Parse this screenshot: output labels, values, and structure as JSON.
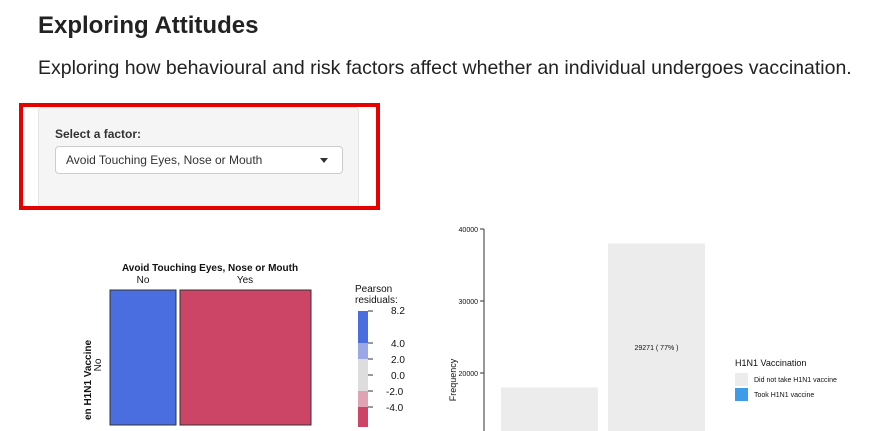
{
  "page": {
    "title": "Exploring Attitudes",
    "subtitle": "Exploring how behavioural and risk factors affect whether an individual undergoes vaccination."
  },
  "factor_select": {
    "label": "Select a factor:",
    "selected": "Avoid Touching Eyes, Nose or Mouth"
  },
  "colors": {
    "highlight": "#e60000",
    "positive": "#4a6ee0",
    "negative": "#cc4466",
    "took": "#3e9be9",
    "not_took": "#ececec"
  },
  "chart_data": [
    {
      "type": "heatmap",
      "title": "Avoid Touching Eyes, Nose or Mouth",
      "x_categories": [
        "No",
        "Yes"
      ],
      "y_label_visible": "en H1N1 Vaccine",
      "y_categories_visible": [
        "No"
      ],
      "legend": {
        "title_lines": [
          "Pearson",
          "residuals:"
        ],
        "ticks": [
          "8.2",
          "4.0",
          "2.0",
          "0.0",
          "-2.0",
          "-4.0"
        ]
      }
    },
    {
      "type": "bar",
      "ylabel": "Frequency",
      "yticks": [
        "40000",
        "30000",
        "20000"
      ],
      "ylim": [
        15000,
        40000
      ],
      "bars": [
        {
          "series": "Did not take H1N1 vaccine",
          "value": 18000
        },
        {
          "series": "Did not take H1N1 vaccine",
          "value": 38000,
          "label": "29271 ( 77% )"
        }
      ],
      "legend": {
        "title": "H1N1 Vaccination",
        "entries": [
          "Did not take H1N1 vaccine",
          "Took H1N1 vaccine"
        ]
      }
    }
  ]
}
